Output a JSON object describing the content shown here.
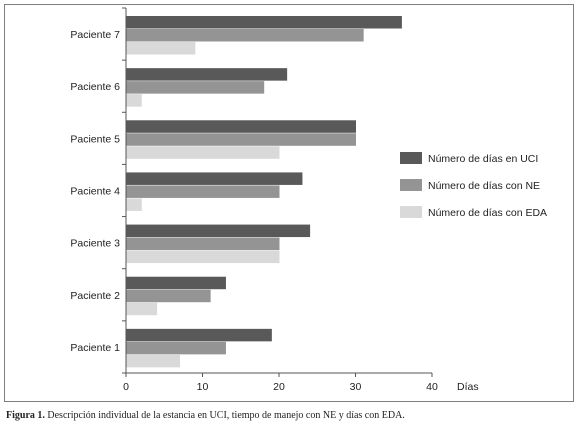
{
  "caption": {
    "label": "Figura 1.",
    "text": " Descripción individual de la estancia en UCI, tiempo de manejo con NE y días con EDA."
  },
  "chart_data": {
    "type": "bar",
    "orientation": "horizontal",
    "categories": [
      "Paciente 1",
      "Paciente 2",
      "Paciente 3",
      "Paciente 4",
      "Paciente 5",
      "Paciente 6",
      "Paciente 7"
    ],
    "series": [
      {
        "name": "Número de días en UCI",
        "color": "#595959",
        "values": [
          19,
          13,
          24,
          23,
          30,
          21,
          36
        ]
      },
      {
        "name": "Número de días con NE",
        "color": "#949494",
        "values": [
          13,
          11,
          20,
          20,
          30,
          18,
          31
        ]
      },
      {
        "name": "Número de días con EDA",
        "color": "#d9d9d9",
        "values": [
          7,
          4,
          20,
          2,
          20,
          2,
          9
        ]
      }
    ],
    "xlabel": "Días",
    "xlim": [
      0,
      40
    ],
    "xticks": [
      0,
      10,
      20,
      30,
      40
    ],
    "grid": false,
    "legend_position": "right"
  }
}
